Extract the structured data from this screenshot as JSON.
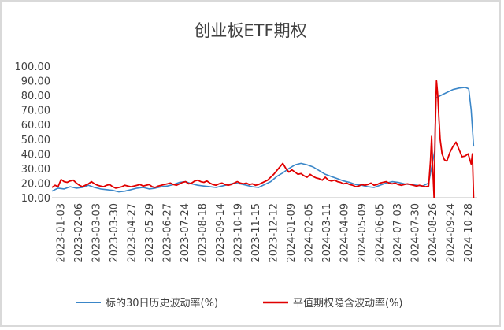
{
  "chart_data": {
    "type": "line",
    "title": "创业板ETF期权",
    "xlabel": "",
    "ylabel": "",
    "ylim": [
      10,
      100
    ],
    "yticks": [
      "10.00",
      "20.00",
      "30.00",
      "40.00",
      "50.00",
      "60.00",
      "70.00",
      "80.00",
      "90.00",
      "100.00"
    ],
    "x_tick_labels": [
      "2023-01-03",
      "2023-02-06",
      "2023-03-03",
      "2023-03-30",
      "2023-04-27",
      "2023-05-29",
      "2023-06-27",
      "2023-07-24",
      "2023-08-18",
      "2023-09-14",
      "2023-10-19",
      "2023-11-15",
      "2023-12-12",
      "2024-01-09",
      "2024-02-05",
      "2024-03-11",
      "2024-04-09",
      "2024-05-09",
      "2024-06-05",
      "2024-07-03",
      "2024-07-30",
      "2024-08-26",
      "2024-09-24",
      "2024-10-28"
    ],
    "grid": false,
    "legend_position": "bottom",
    "series": [
      {
        "name": "标的30日历史波动率(%)",
        "color": "#3a86c8",
        "points": [
          [
            0,
            14.5
          ],
          [
            1,
            16.5
          ],
          [
            2,
            16
          ],
          [
            3,
            17.5
          ],
          [
            4,
            16.5
          ],
          [
            5,
            17
          ],
          [
            6,
            18.5
          ],
          [
            7,
            17
          ],
          [
            8,
            16
          ],
          [
            9,
            15.5
          ],
          [
            10,
            15
          ],
          [
            11,
            14
          ],
          [
            12,
            14.5
          ],
          [
            13,
            15.5
          ],
          [
            14,
            16.5
          ],
          [
            15,
            17
          ],
          [
            16,
            16
          ],
          [
            17,
            16.5
          ],
          [
            18,
            17.5
          ],
          [
            19,
            18
          ],
          [
            20,
            19
          ],
          [
            21,
            20.5
          ],
          [
            22,
            21
          ],
          [
            23,
            19.5
          ],
          [
            24,
            18.5
          ],
          [
            25,
            18
          ],
          [
            26,
            17.5
          ],
          [
            27,
            17
          ],
          [
            28,
            18
          ],
          [
            29,
            19
          ],
          [
            30,
            20
          ],
          [
            31,
            19.5
          ],
          [
            32,
            18.5
          ],
          [
            33,
            17.5
          ],
          [
            34,
            17
          ],
          [
            35,
            19
          ],
          [
            36,
            21
          ],
          [
            37,
            24.5
          ],
          [
            38,
            27
          ],
          [
            39,
            30
          ],
          [
            40,
            32.5
          ],
          [
            41,
            33.5
          ],
          [
            42,
            32.5
          ],
          [
            43,
            31
          ],
          [
            44,
            28.5
          ],
          [
            45,
            26
          ],
          [
            46,
            24.5
          ],
          [
            47,
            23
          ],
          [
            48,
            21.5
          ],
          [
            49,
            20.5
          ],
          [
            50,
            19
          ],
          [
            51,
            18.5
          ],
          [
            52,
            17.5
          ],
          [
            53,
            17
          ],
          [
            54,
            18.5
          ],
          [
            55,
            20
          ],
          [
            56,
            21
          ],
          [
            57,
            20.5
          ],
          [
            58,
            19.5
          ],
          [
            59,
            19
          ],
          [
            60,
            18.5
          ],
          [
            61,
            18
          ],
          [
            62,
            20
          ],
          [
            63,
            42
          ],
          [
            63.2,
            78
          ],
          [
            64,
            80
          ],
          [
            65,
            82
          ],
          [
            66,
            84
          ],
          [
            67,
            85
          ],
          [
            68,
            85.5
          ],
          [
            68.6,
            84.5
          ],
          [
            69,
            70
          ],
          [
            69.4,
            45
          ]
        ]
      },
      {
        "name": "平值期权隐含波动率(%)",
        "color": "#e00000",
        "points": [
          [
            0,
            17
          ],
          [
            0.5,
            18.5
          ],
          [
            1,
            17.5
          ],
          [
            1.5,
            22.5
          ],
          [
            2,
            21
          ],
          [
            2.5,
            20.5
          ],
          [
            3,
            21.5
          ],
          [
            3.5,
            22
          ],
          [
            4,
            20
          ],
          [
            4.5,
            18.5
          ],
          [
            5,
            17.5
          ],
          [
            5.5,
            18.5
          ],
          [
            6,
            19.5
          ],
          [
            6.5,
            21
          ],
          [
            7,
            19.5
          ],
          [
            7.5,
            18.5
          ],
          [
            8,
            18
          ],
          [
            8.5,
            17.5
          ],
          [
            9,
            18.5
          ],
          [
            9.5,
            19
          ],
          [
            10,
            17.5
          ],
          [
            10.5,
            16.5
          ],
          [
            11,
            17
          ],
          [
            11.5,
            17.5
          ],
          [
            12,
            18.5
          ],
          [
            12.5,
            18
          ],
          [
            13,
            17.5
          ],
          [
            13.5,
            18
          ],
          [
            14,
            18.5
          ],
          [
            14.5,
            19
          ],
          [
            15,
            18
          ],
          [
            15.5,
            18.5
          ],
          [
            16,
            19
          ],
          [
            16.5,
            17.5
          ],
          [
            17,
            17
          ],
          [
            17.5,
            18
          ],
          [
            18,
            18.5
          ],
          [
            18.5,
            19
          ],
          [
            19,
            19.5
          ],
          [
            19.5,
            20
          ],
          [
            20,
            19
          ],
          [
            20.5,
            18.5
          ],
          [
            21,
            19.5
          ],
          [
            21.5,
            20.5
          ],
          [
            22,
            21
          ],
          [
            22.5,
            19.5
          ],
          [
            23,
            20
          ],
          [
            23.5,
            21.5
          ],
          [
            24,
            22
          ],
          [
            24.5,
            21
          ],
          [
            25,
            20.5
          ],
          [
            25.5,
            21.5
          ],
          [
            26,
            20
          ],
          [
            26.5,
            19
          ],
          [
            27,
            18.5
          ],
          [
            27.5,
            19.5
          ],
          [
            28,
            20
          ],
          [
            28.5,
            19
          ],
          [
            29,
            18.5
          ],
          [
            29.5,
            19
          ],
          [
            30,
            20
          ],
          [
            30.5,
            21
          ],
          [
            31,
            20
          ],
          [
            31.5,
            19.5
          ],
          [
            32,
            20
          ],
          [
            32.5,
            19
          ],
          [
            33,
            19.5
          ],
          [
            33.5,
            18.5
          ],
          [
            34,
            19
          ],
          [
            34.5,
            20
          ],
          [
            35,
            21
          ],
          [
            35.5,
            22
          ],
          [
            36,
            24
          ],
          [
            36.5,
            26
          ],
          [
            37,
            28.5
          ],
          [
            37.5,
            31
          ],
          [
            38,
            33.5
          ],
          [
            38.5,
            30
          ],
          [
            39,
            27.5
          ],
          [
            39.5,
            29
          ],
          [
            40,
            27.5
          ],
          [
            40.5,
            26
          ],
          [
            41,
            26.5
          ],
          [
            41.5,
            25
          ],
          [
            42,
            24
          ],
          [
            42.5,
            26
          ],
          [
            43,
            24.5
          ],
          [
            43.5,
            23.5
          ],
          [
            44,
            23
          ],
          [
            44.5,
            22
          ],
          [
            45,
            24
          ],
          [
            45.5,
            22
          ],
          [
            46,
            21.5
          ],
          [
            46.5,
            22
          ],
          [
            47,
            21
          ],
          [
            47.5,
            20.5
          ],
          [
            48,
            19.5
          ],
          [
            48.5,
            20
          ],
          [
            49,
            19
          ],
          [
            49.5,
            18.5
          ],
          [
            50,
            17.5
          ],
          [
            50.5,
            18
          ],
          [
            51,
            19
          ],
          [
            51.5,
            18.5
          ],
          [
            52,
            19
          ],
          [
            52.5,
            20
          ],
          [
            53,
            18.5
          ],
          [
            53.5,
            19
          ],
          [
            54,
            20
          ],
          [
            54.5,
            20.5
          ],
          [
            55,
            21
          ],
          [
            55.5,
            20
          ],
          [
            56,
            19.5
          ],
          [
            56.5,
            20
          ],
          [
            57,
            19
          ],
          [
            57.5,
            18.5
          ],
          [
            58,
            19
          ],
          [
            58.5,
            19.5
          ],
          [
            59,
            19
          ],
          [
            59.5,
            18.5
          ],
          [
            60,
            18
          ],
          [
            60.5,
            18.5
          ],
          [
            61,
            18
          ],
          [
            61.5,
            17.5
          ],
          [
            62,
            18
          ],
          [
            62.3,
            35
          ],
          [
            62.5,
            52
          ],
          [
            62.7,
            28
          ],
          [
            62.9,
            10
          ],
          [
            63.1,
            60
          ],
          [
            63.3,
            90
          ],
          [
            63.5,
            80
          ],
          [
            63.7,
            64
          ],
          [
            63.9,
            50
          ],
          [
            64.2,
            40
          ],
          [
            64.6,
            36
          ],
          [
            65,
            35
          ],
          [
            65.5,
            41
          ],
          [
            66,
            45
          ],
          [
            66.5,
            48
          ],
          [
            67,
            43
          ],
          [
            67.5,
            38
          ],
          [
            68,
            38.5
          ],
          [
            68.5,
            40
          ],
          [
            68.8,
            36
          ],
          [
            69,
            33
          ],
          [
            69.2,
            40
          ],
          [
            69.4,
            10
          ]
        ]
      }
    ]
  }
}
